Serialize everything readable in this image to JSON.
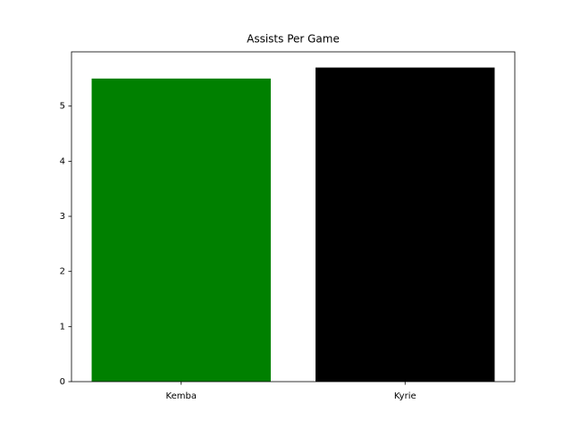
{
  "chart_data": {
    "type": "bar",
    "title": "Assists Per Game",
    "categories": [
      "Kemba",
      "Kyrie"
    ],
    "values": [
      5.5,
      5.7
    ],
    "colors": [
      "#008000",
      "#000000"
    ],
    "ylim": [
      0,
      5.985
    ],
    "yticks": [
      0,
      1,
      2,
      3,
      4,
      5
    ],
    "xlim": [
      -0.49,
      1.49
    ],
    "grid": false
  }
}
